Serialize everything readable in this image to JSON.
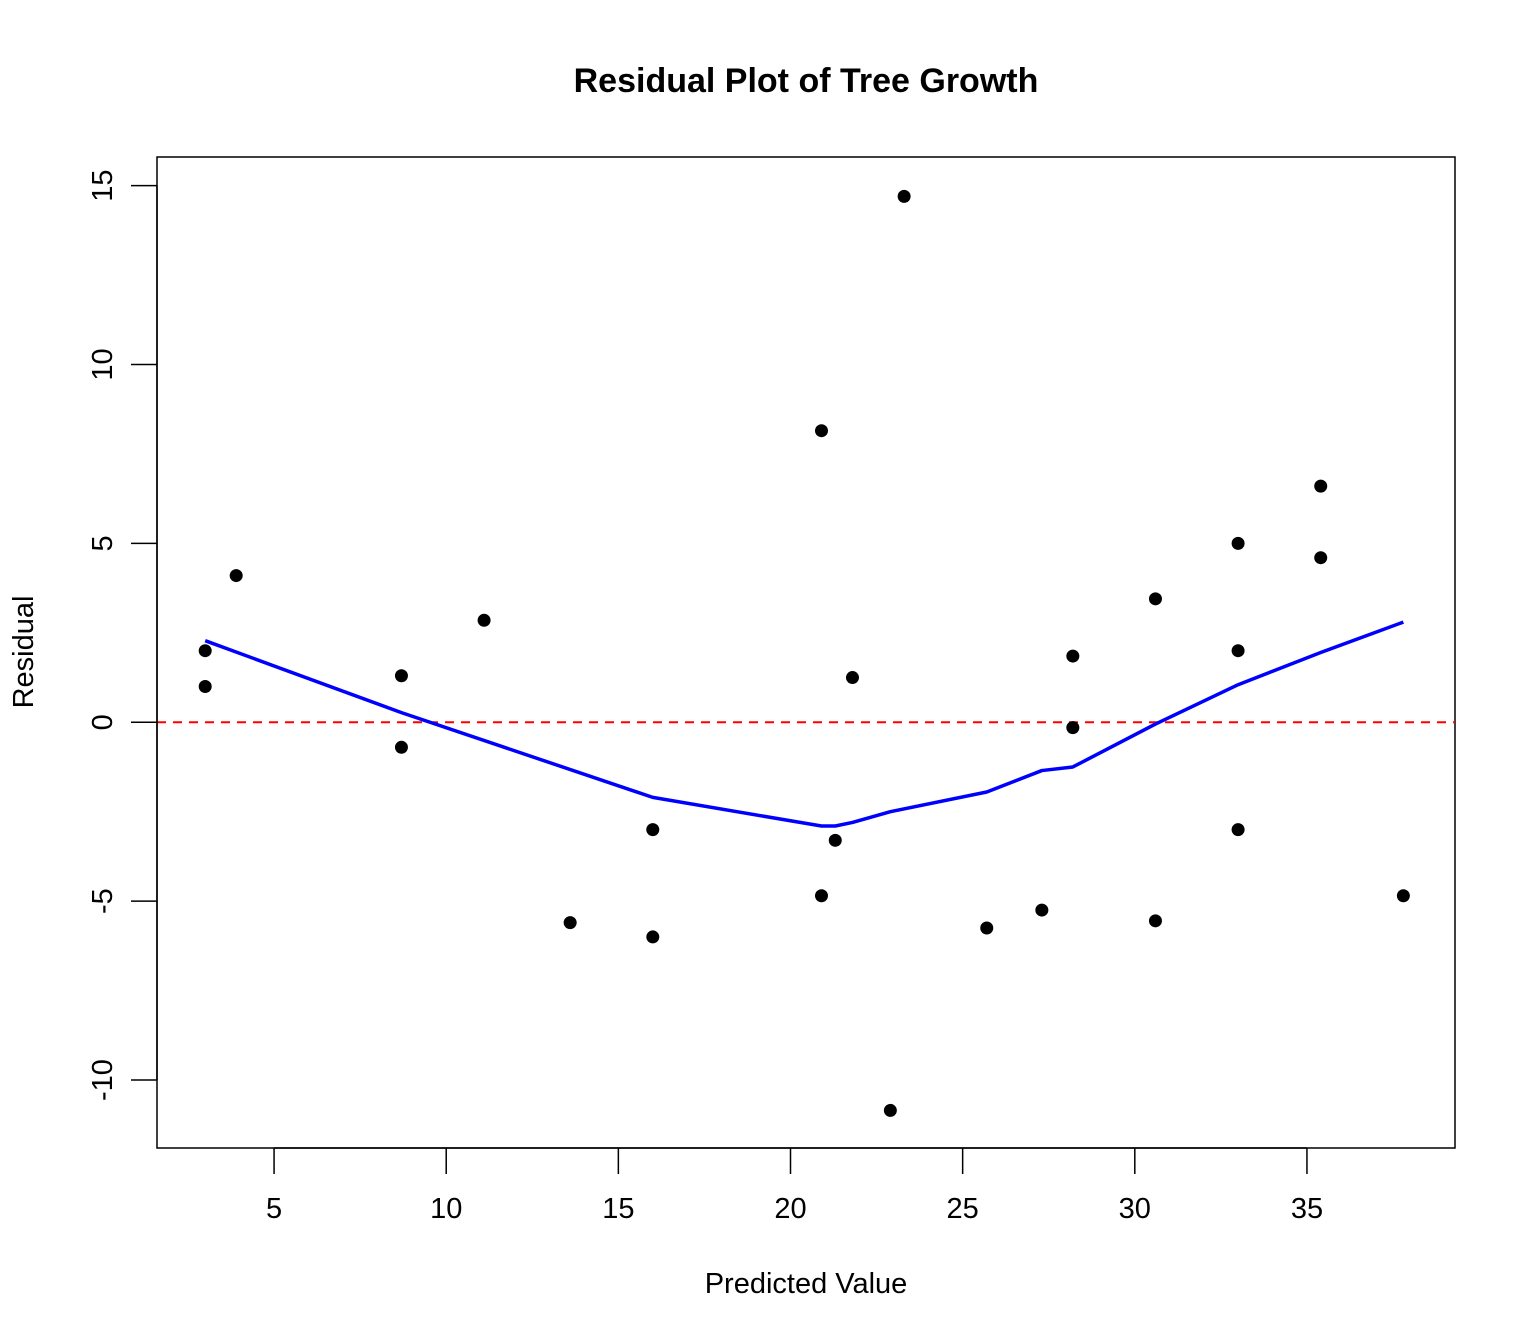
{
  "chart_data": {
    "type": "scatter",
    "title": "Residual Plot of Tree Growth",
    "xlabel": "Predicted Value",
    "ylabel": "Residual",
    "xlim": [
      1.6,
      39.3
    ],
    "ylim": [
      -11.9,
      15.8
    ],
    "xticks": [
      5,
      10,
      15,
      20,
      25,
      30,
      35
    ],
    "xtick_labels": [
      "5",
      "10",
      "15",
      "20",
      "25",
      "30",
      "35"
    ],
    "yticks": [
      -10,
      -5,
      0,
      5,
      10,
      15
    ],
    "ytick_labels": [
      "-10",
      "-5",
      "0",
      "5",
      "10",
      "15"
    ],
    "grid": false,
    "points": {
      "x": [
        3.0,
        3.0,
        3.9,
        8.7,
        8.7,
        11.1,
        13.6,
        16.0,
        16.0,
        20.9,
        20.9,
        21.3,
        21.8,
        22.9,
        23.3,
        25.7,
        27.3,
        28.2,
        28.2,
        30.6,
        30.6,
        33.0,
        33.0,
        33.0,
        35.4,
        35.4,
        37.8
      ],
      "y": [
        2.0,
        1.0,
        4.1,
        1.3,
        -0.7,
        2.85,
        -5.6,
        -3.0,
        -6.0,
        8.15,
        -4.85,
        -3.3,
        1.25,
        -10.85,
        14.7,
        -5.75,
        -5.25,
        1.85,
        -0.15,
        3.45,
        -5.55,
        5.0,
        2.0,
        -3.0,
        6.6,
        4.6,
        -4.85
      ],
      "color": "#000000",
      "marker": "filled-circle"
    },
    "series": [
      {
        "name": "smooth",
        "kind": "line",
        "color": "#0000ff",
        "x": [
          3.0,
          8.7,
          16.0,
          20.9,
          21.3,
          21.8,
          22.9,
          25.7,
          27.3,
          28.2,
          30.6,
          33.0,
          35.4,
          37.8
        ],
        "y": [
          2.28,
          0.27,
          -2.1,
          -2.9,
          -2.9,
          -2.8,
          -2.5,
          -1.95,
          -1.35,
          -1.25,
          -0.05,
          1.05,
          1.95,
          2.8
        ]
      }
    ],
    "reference_lines": [
      {
        "axis": "y",
        "value": 0,
        "color": "#ff0000",
        "style": "dashed"
      }
    ]
  }
}
